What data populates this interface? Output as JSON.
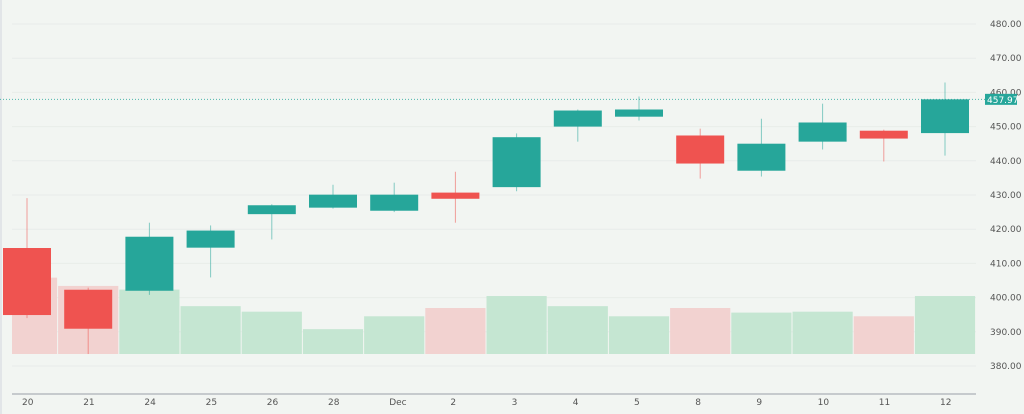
{
  "chart_data": {
    "type": "candlestick",
    "title": "",
    "xlabel": "",
    "ylabel": "",
    "ylim": [
      376,
      484
    ],
    "grid": true,
    "legend": "none",
    "categories": [
      "20",
      "21",
      "24",
      "25",
      "26",
      "28",
      "Dec",
      "2",
      "3",
      "4",
      "5",
      "8",
      "9",
      "10",
      "11",
      "12"
    ],
    "y_ticks": [
      "480.00",
      "470.00",
      "460.00",
      "450.00",
      "440.00",
      "430.00",
      "420.00",
      "410.00",
      "400.00",
      "390.00",
      "380.00"
    ],
    "series": [
      {
        "name": "open",
        "values": [
          414.5,
          402.3,
          402.0,
          414.6,
          424.4,
          426.3,
          425.4,
          430.7,
          432.3,
          450.0,
          452.9,
          447.4,
          437.1,
          445.6,
          448.8,
          448.1
        ]
      },
      {
        "name": "high",
        "values": [
          429.1,
          402.9,
          421.9,
          421.1,
          427.3,
          433.0,
          433.6,
          436.8,
          448.0,
          455.0,
          458.8,
          449.4,
          452.3,
          456.7,
          449.1,
          462.9
        ]
      },
      {
        "name": "low",
        "values": [
          394.0,
          383.5,
          400.8,
          405.9,
          417.0,
          426.0,
          425.0,
          421.9,
          431.1,
          445.6,
          451.8,
          434.8,
          435.4,
          443.3,
          439.8,
          441.5
        ]
      },
      {
        "name": "close",
        "values": [
          394.9,
          390.9,
          417.8,
          419.6,
          427.0,
          430.1,
          430.1,
          428.9,
          446.9,
          454.7,
          455.0,
          439.2,
          445.0,
          451.2,
          446.5,
          457.97
        ]
      },
      {
        "name": "volume_relative",
        "values": [
          0.83,
          0.74,
          0.7,
          0.52,
          0.46,
          0.27,
          0.41,
          0.5,
          0.63,
          0.52,
          0.41,
          0.5,
          0.45,
          0.46,
          0.41,
          0.63
        ]
      }
    ],
    "last_price": "457.97",
    "colors": {
      "up": "#26a69a",
      "down": "#ef5350",
      "volume_up": "#c5e6d2",
      "volume_down": "#f2d2d0",
      "last_price_line": "#26a69a",
      "axis_text": "#555555",
      "background": "#f2f5f2"
    }
  }
}
